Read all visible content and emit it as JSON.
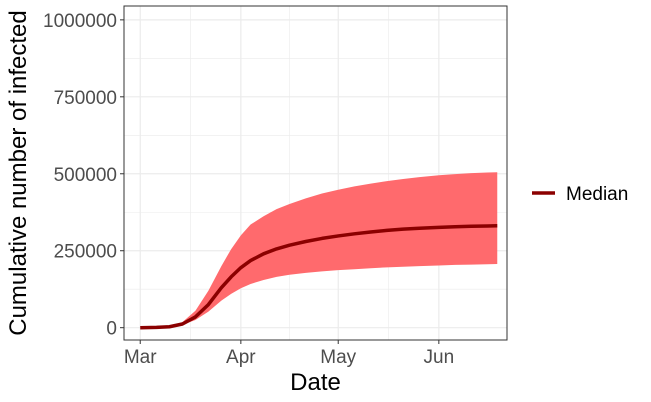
{
  "chart_data": {
    "type": "area",
    "xlabel": "Date",
    "ylabel": "Cumulative number of infected",
    "x_ticks": [
      {
        "label": "Mar",
        "date": "2020-03-01"
      },
      {
        "label": "Apr",
        "date": "2020-04-01"
      },
      {
        "label": "May",
        "date": "2020-05-01"
      },
      {
        "label": "Jun",
        "date": "2020-06-01"
      }
    ],
    "y_ticks": [
      {
        "label": "0",
        "value": 0
      },
      {
        "label": "250000",
        "value": 250000
      },
      {
        "label": "500000",
        "value": 500000
      },
      {
        "label": "750000",
        "value": 750000
      },
      {
        "label": "1000000",
        "value": 1000000
      }
    ],
    "xlim": [
      "2020-02-25",
      "2020-06-22"
    ],
    "ylim": [
      -40000,
      1045000
    ],
    "grid": true,
    "legend": {
      "position": "right",
      "entries": [
        {
          "name": "Median",
          "color": "#8b0000"
        }
      ]
    },
    "colors": {
      "band": "#ff6a6d",
      "median": "#8b0000",
      "grid": "#ebebeb",
      "panel_border": "#333333"
    },
    "series": [
      {
        "name": "Median",
        "x": [
          "2020-03-01",
          "2020-03-06",
          "2020-03-10",
          "2020-03-14",
          "2020-03-18",
          "2020-03-22",
          "2020-03-26",
          "2020-03-29",
          "2020-04-01",
          "2020-04-04",
          "2020-04-08",
          "2020-04-12",
          "2020-04-16",
          "2020-04-21",
          "2020-04-26",
          "2020-05-01",
          "2020-05-06",
          "2020-05-11",
          "2020-05-16",
          "2020-05-21",
          "2020-05-26",
          "2020-06-01",
          "2020-06-06",
          "2020-06-11",
          "2020-06-16",
          "2020-06-19"
        ],
        "y": [
          0,
          1000,
          3000,
          12000,
          35000,
          75000,
          130000,
          165000,
          195000,
          218000,
          240000,
          256000,
          268000,
          280000,
          290000,
          298000,
          305000,
          311000,
          316000,
          320000,
          323000,
          326000,
          328000,
          329500,
          330500,
          331000
        ]
      },
      {
        "name": "Lower",
        "x": [
          "2020-03-01",
          "2020-03-06",
          "2020-03-10",
          "2020-03-14",
          "2020-03-18",
          "2020-03-22",
          "2020-03-26",
          "2020-03-29",
          "2020-04-01",
          "2020-04-04",
          "2020-04-08",
          "2020-04-12",
          "2020-04-16",
          "2020-04-21",
          "2020-04-26",
          "2020-05-01",
          "2020-05-06",
          "2020-05-11",
          "2020-05-16",
          "2020-05-21",
          "2020-05-26",
          "2020-06-01",
          "2020-06-06",
          "2020-06-11",
          "2020-06-16",
          "2020-06-19"
        ],
        "y": [
          0,
          800,
          2500,
          9000,
          25000,
          52000,
          88000,
          110000,
          128000,
          142000,
          155000,
          165000,
          172000,
          178000,
          183000,
          187000,
          190000,
          193000,
          196000,
          198000,
          200000,
          202000,
          204000,
          205000,
          206000,
          207000
        ]
      },
      {
        "name": "Upper",
        "x": [
          "2020-03-01",
          "2020-03-06",
          "2020-03-10",
          "2020-03-14",
          "2020-03-18",
          "2020-03-22",
          "2020-03-26",
          "2020-03-29",
          "2020-04-01",
          "2020-04-04",
          "2020-04-08",
          "2020-04-12",
          "2020-04-16",
          "2020-04-21",
          "2020-04-26",
          "2020-05-01",
          "2020-05-06",
          "2020-05-11",
          "2020-05-16",
          "2020-05-21",
          "2020-05-26",
          "2020-06-01",
          "2020-06-06",
          "2020-06-11",
          "2020-06-16",
          "2020-06-19"
        ],
        "y": [
          0,
          1500,
          5000,
          18000,
          55000,
          120000,
          200000,
          255000,
          300000,
          335000,
          362000,
          385000,
          402000,
          420000,
          436000,
          448000,
          459000,
          468000,
          476000,
          483000,
          489000,
          495000,
          499000,
          502000,
          504000,
          505000
        ]
      }
    ]
  }
}
